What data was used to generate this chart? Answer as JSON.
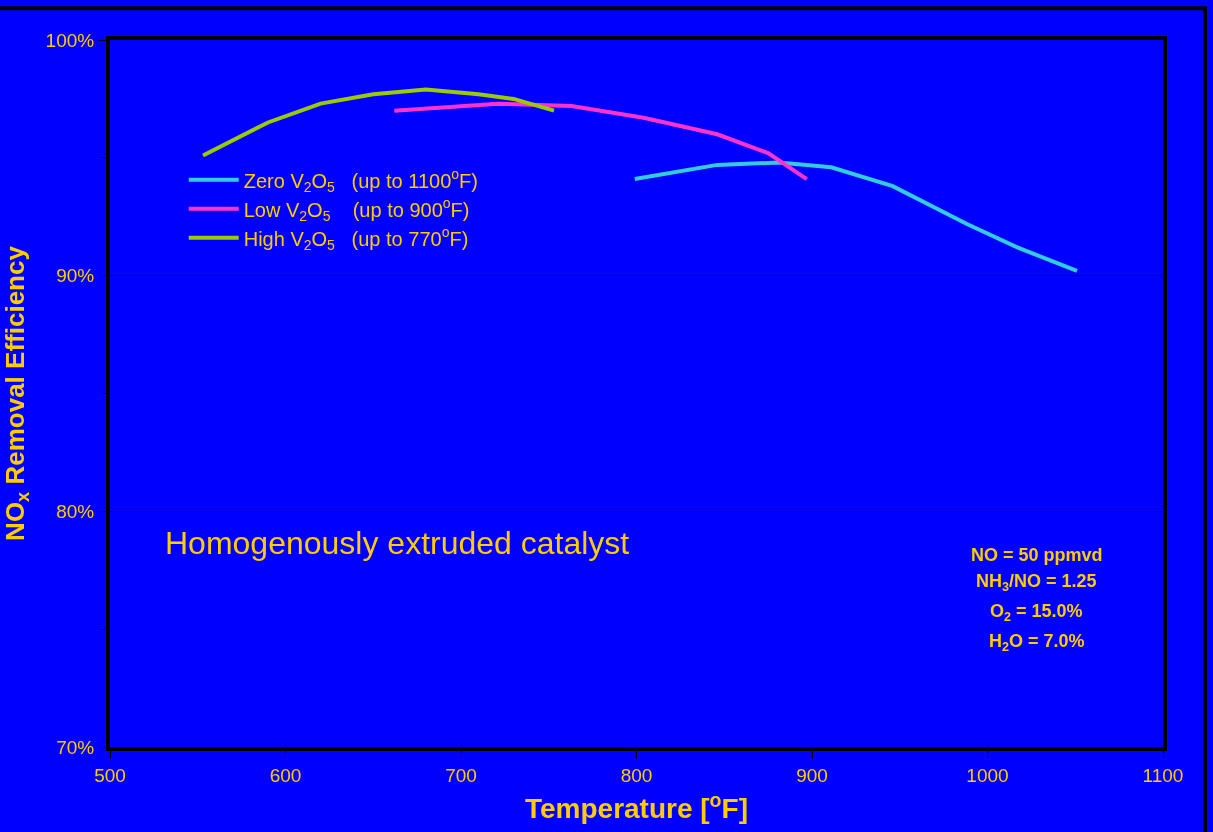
{
  "chart_data": {
    "type": "line",
    "xlabel": "Temperature [$^{o}$F]",
    "ylabel": "NO$_{x}$ Removal Efficiency",
    "xlim": [
      500,
      1100
    ],
    "ylim": [
      70,
      100
    ],
    "xticks": [
      500,
      600,
      700,
      800,
      900,
      1000,
      1100
    ],
    "yticks": [
      {
        "value": 70,
        "label": "70%"
      },
      {
        "value": 75,
        "label": null
      },
      {
        "value": 80,
        "label": "80%"
      },
      {
        "value": 85,
        "label": null
      },
      {
        "value": 90,
        "label": "90%"
      },
      {
        "value": 95,
        "label": null
      },
      {
        "value": 100,
        "label": "100%"
      }
    ],
    "grid": "y",
    "legend": "top left",
    "marker": "none",
    "line_style": "solid",
    "series": [
      {
        "name": "Zero V$_{2}$O$_{5}$   (up to 1100$^{o}$F)",
        "color": "#33ccdd",
        "x": [
          799,
          846,
          881,
          911,
          946,
          988,
          1017,
          1051
        ],
        "values": [
          94.1,
          94.7,
          94.8,
          94.6,
          93.8,
          92.2,
          91.2,
          90.2
        ]
      },
      {
        "name": "Low V$_{2}$O$_{5}$    (up to 900$^{o}$F)",
        "color": "#ff33cc",
        "x": [
          662,
          721,
          763,
          804,
          846,
          875,
          897
        ],
        "values": [
          97.0,
          97.3,
          97.2,
          96.7,
          96.0,
          95.2,
          94.1
        ]
      },
      {
        "name": "High V$_{2}$O$_{5}$   (up to 770$^{o}$F)",
        "color": "#99cc00",
        "x": [
          553,
          590,
          620,
          650,
          680,
          710,
          730,
          753
        ],
        "values": [
          95.1,
          96.5,
          97.3,
          97.7,
          97.9,
          97.7,
          97.5,
          97.0
        ]
      }
    ],
    "annotations": [
      "Homogenously extruded catalyst",
      "NO = 50 ppmvd",
      "NH$_{3}$/NO = 1.25",
      "O$_{2}$ = 15.0%",
      "H$_{2}$O = 7.0%"
    ]
  }
}
